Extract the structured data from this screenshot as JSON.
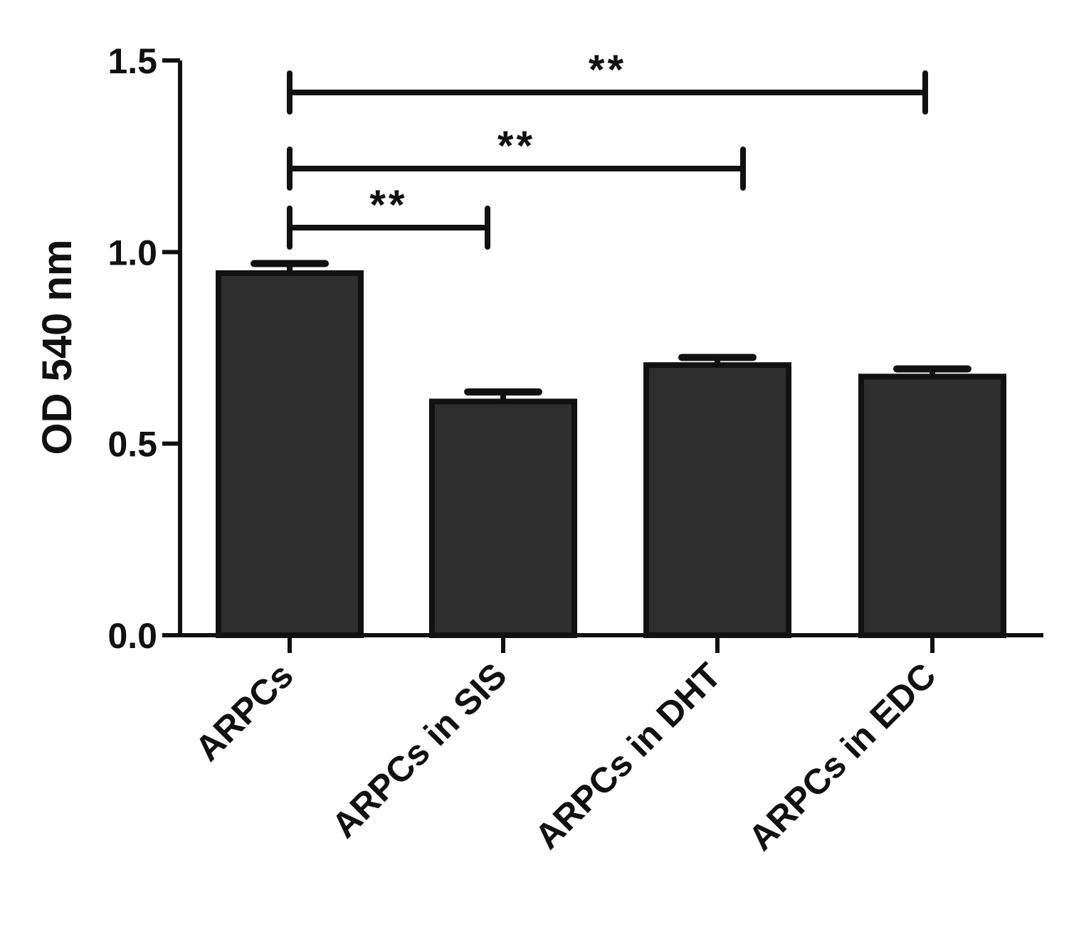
{
  "chart_data": {
    "type": "bar",
    "title": "",
    "xlabel": "",
    "ylabel": "OD 540 nm",
    "ylim": [
      0,
      1.5
    ],
    "yticks": [
      0.0,
      0.5,
      1.0,
      1.5
    ],
    "ytick_labels": [
      "0.0",
      "0.5",
      "1.0",
      "1.5"
    ],
    "categories": [
      "ARPCs",
      "ARPCs in SIS",
      "ARPCs in DHT",
      "ARPCs in EDC"
    ],
    "values": [
      0.945,
      0.61,
      0.705,
      0.675
    ],
    "errors": [
      0.025,
      0.025,
      0.02,
      0.02
    ],
    "bar_color": "#2e2e2e",
    "grid": false,
    "significance": [
      {
        "from": 0,
        "to": 1,
        "label": "**"
      },
      {
        "from": 0,
        "to": 2,
        "label": "**"
      },
      {
        "from": 0,
        "to": 3,
        "label": "**"
      }
    ]
  }
}
